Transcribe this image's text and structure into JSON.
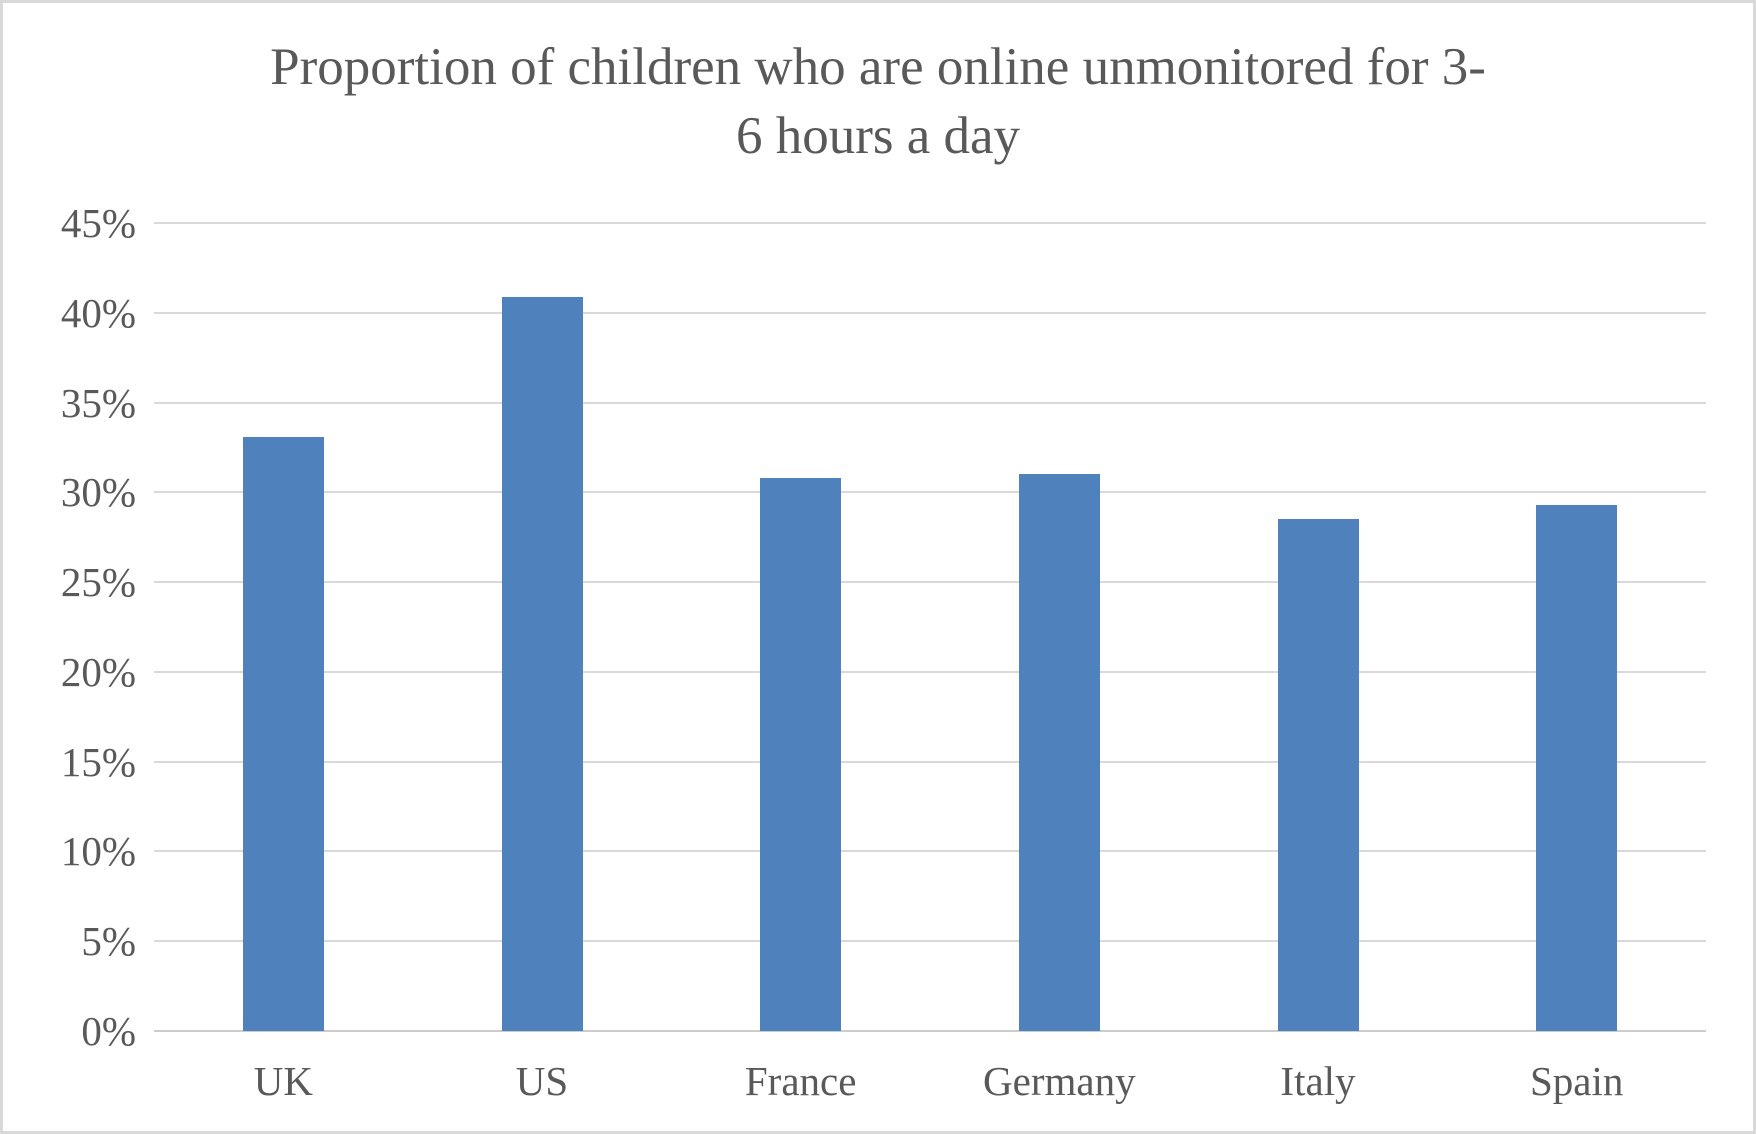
{
  "chart_data": {
    "type": "bar",
    "title": "Proportion of children who are online unmonitored for 3-6 hours a day",
    "title_lines": [
      "Proportion of children who are online unmonitored for 3-",
      "6 hours a day"
    ],
    "categories": [
      "UK",
      "US",
      "France",
      "Germany",
      "Italy",
      "Spain"
    ],
    "values": [
      33.1,
      40.9,
      30.8,
      31.0,
      28.5,
      29.3
    ],
    "value_unit": "%",
    "xlabel": "",
    "ylabel": "",
    "ylim": [
      0,
      45
    ],
    "ytick_step": 5,
    "ytick_labels": [
      "0%",
      "5%",
      "10%",
      "15%",
      "20%",
      "25%",
      "30%",
      "35%",
      "40%",
      "45%"
    ],
    "grid": true,
    "legend": "none",
    "colors": {
      "bar_fill": "#4f81bd",
      "text": "#595959",
      "gridline": "#d9d9d9",
      "axis_line": "#cccccc",
      "background": "#ffffff",
      "frame_border": "#d9d9d9"
    }
  }
}
